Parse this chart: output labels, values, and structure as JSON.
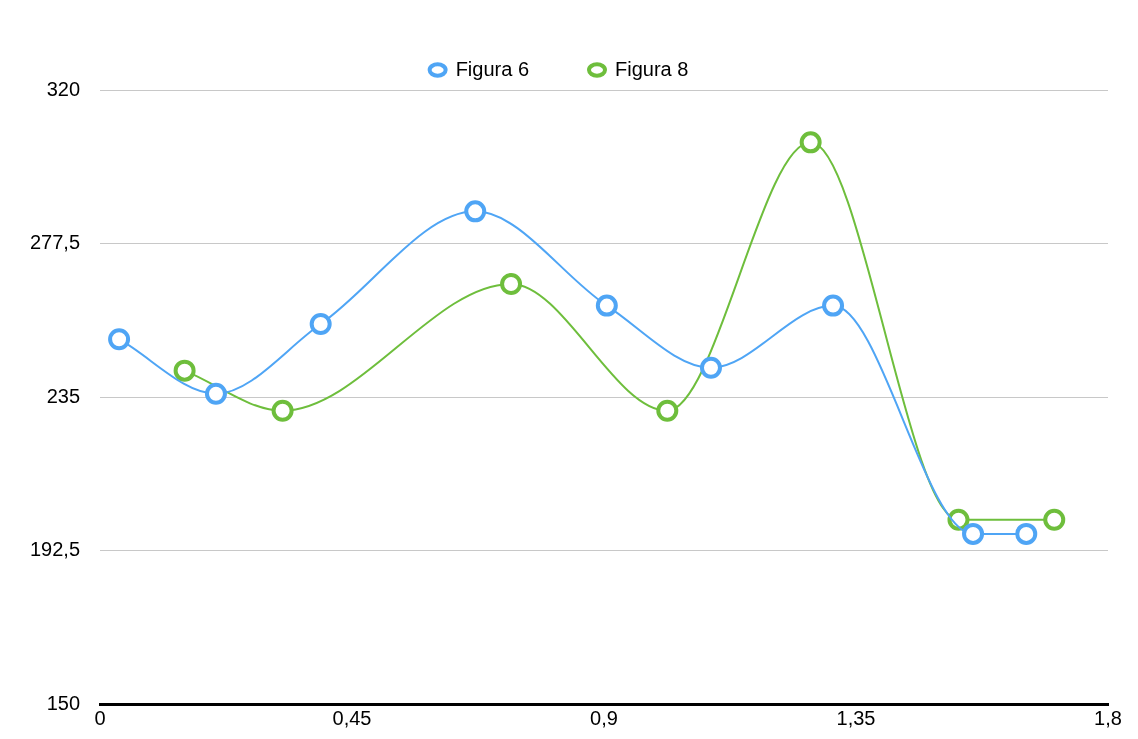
{
  "chart_data": {
    "type": "line",
    "xlim": [
      0,
      1.8
    ],
    "xticks": [
      0,
      {
        "value": 0.45,
        "label": "0,45"
      },
      {
        "value": 0.9,
        "label": "0,9"
      },
      {
        "value": 1.35,
        "label": "1,35"
      },
      {
        "value": 1.8,
        "label": "1,8"
      }
    ],
    "ylim": [
      150,
      320
    ],
    "yticks": [
      150,
      {
        "value": 192.5,
        "label": "192,5"
      },
      235,
      {
        "value": 277.5,
        "label": "277,5"
      },
      320
    ],
    "grid": "y",
    "legend": "top",
    "marker": "circle",
    "line_style": "solid",
    "series": [
      {
        "name": "Figura 6",
        "color": "#4fa5f5",
        "x": [
          0.034,
          0.207,
          0.394,
          0.67,
          0.905,
          1.091,
          1.309,
          1.559,
          1.654
        ],
        "values": [
          251.0,
          235.9,
          255.2,
          286.4,
          260.3,
          243.1,
          260.3,
          197.1,
          197.1
        ]
      },
      {
        "name": "Figura 8",
        "color": "#6ebe3c",
        "x": [
          0.151,
          0.326,
          0.734,
          1.013,
          1.269,
          1.533,
          1.704
        ],
        "values": [
          242.3,
          231.2,
          266.3,
          231.2,
          305.5,
          201.0,
          201.0
        ]
      }
    ]
  }
}
